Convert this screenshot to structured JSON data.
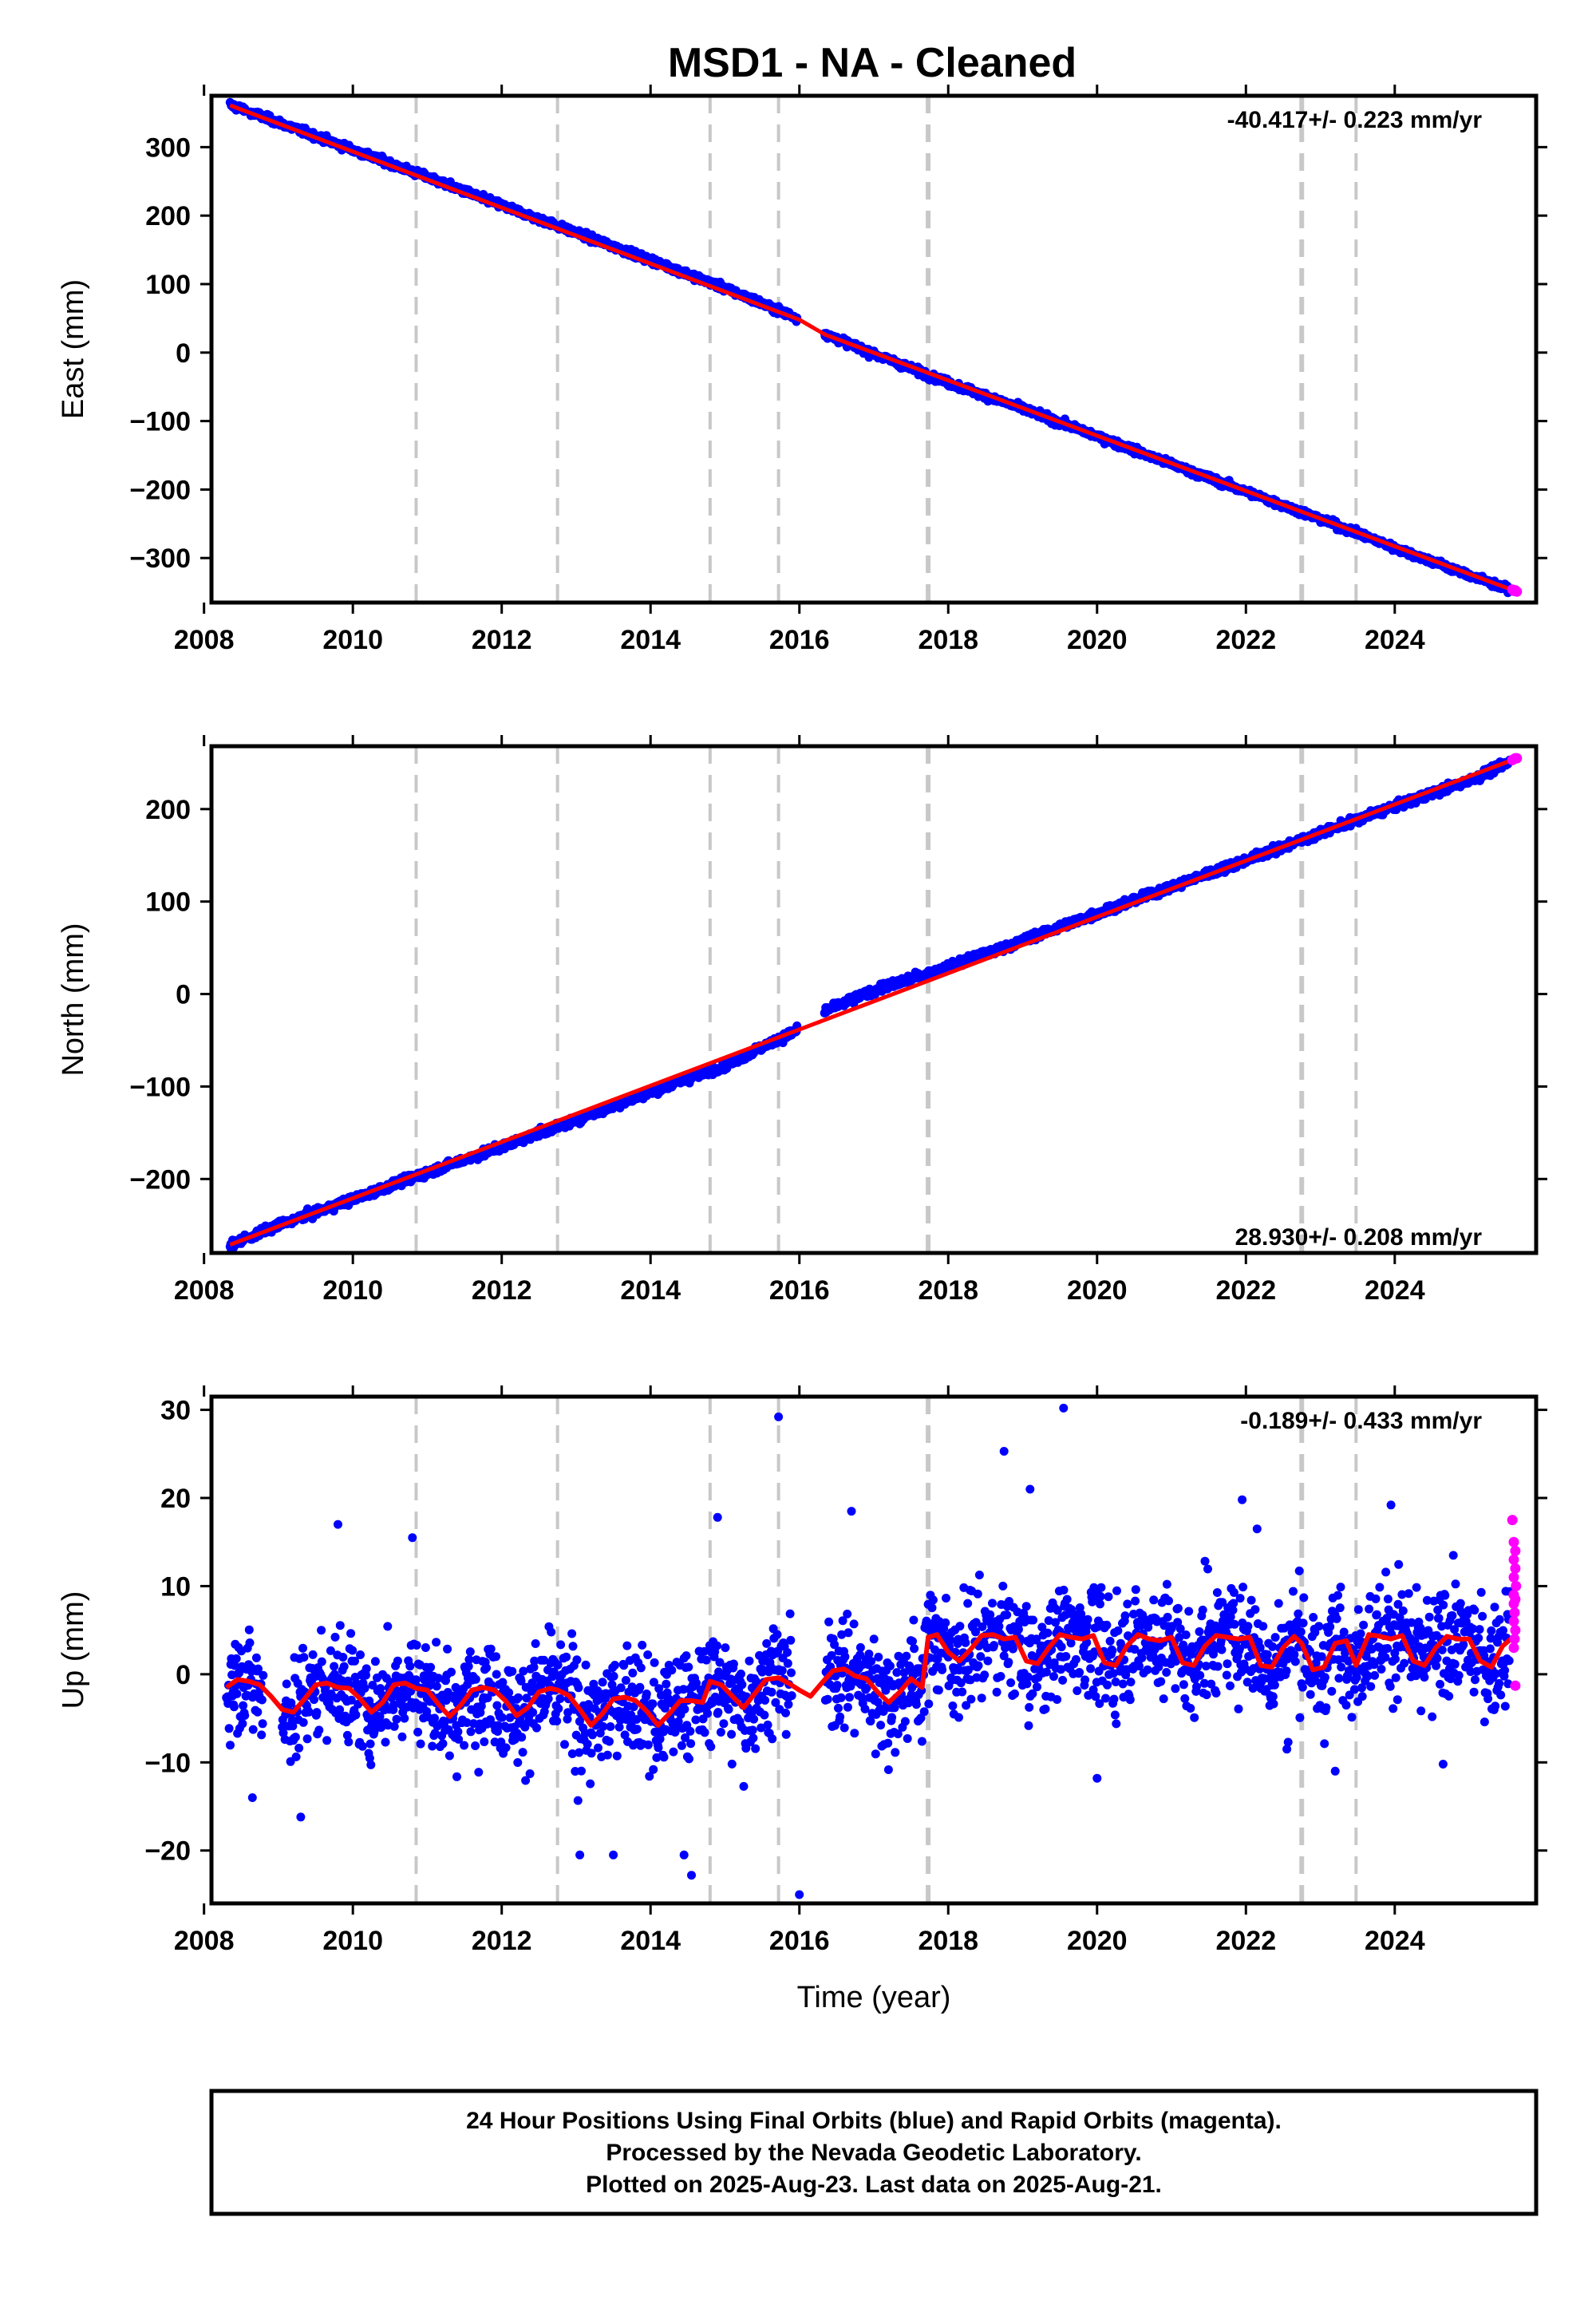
{
  "title": "MSD1  - NA - Cleaned",
  "colors": {
    "final_orbits": "#0000ff",
    "rapid_orbits": "#ff00ff",
    "model": "#ff0000",
    "equipment_lines": "#c8c8c8",
    "frame": "#000000"
  },
  "footer": {
    "line1": "24 Hour Positions Using Final Orbits (blue) and Rapid Orbits (magenta).",
    "line2": "Processed by the Nevada Geodetic Laboratory.",
    "line3": "Plotted on 2025-Aug-23. Last data on 2025-Aug-21."
  },
  "chart_data": [
    {
      "type": "scatter",
      "component": "east",
      "ylabel": "East (mm)",
      "xlabel": "",
      "xlim": [
        2008.1,
        2025.9
      ],
      "ylim": [
        -365,
        375
      ],
      "x_ticks": [
        2008,
        2010,
        2012,
        2014,
        2016,
        2018,
        2020,
        2022,
        2024
      ],
      "y_ticks": [
        300,
        200,
        100,
        0,
        -100,
        -200,
        -300
      ],
      "y_tick_labels": [
        "300",
        "200",
        "100",
        "0",
        "−100",
        "−200",
        "−300"
      ],
      "rate_label": "-40.417+/- 0.223 mm/yr",
      "rate_position": "top-right",
      "grid": false,
      "equipment_changes": [
        2010.85,
        2012.75,
        2014.8,
        2015.72,
        2017.73,
        2022.75,
        2023.48
      ],
      "series": [
        {
          "name": "Final Orbits (blue)",
          "x": [
            2008.35,
            2009.0,
            2010.0,
            2011.0,
            2012.0,
            2013.0,
            2014.0,
            2015.0,
            2016.0,
            2016.35,
            2017.0,
            2018.0,
            2019.0,
            2020.0,
            2021.0,
            2022.0,
            2023.0,
            2024.0,
            2025.0,
            2025.55
          ],
          "y": [
            362,
            336,
            296,
            256,
            215,
            175,
            135,
            94,
            49,
            27,
            -2,
            -44,
            -82,
            -122,
            -163,
            -203,
            -243,
            -285,
            -325,
            -347
          ],
          "noise": 3.5
        },
        {
          "name": "Rapid Orbits (magenta)",
          "x": [
            2025.58,
            2025.6,
            2025.62,
            2025.64
          ],
          "y": [
            -346,
            -348,
            -347,
            -349
          ]
        },
        {
          "name": "Model",
          "x": [
            2008.35,
            2016.0,
            2016.35,
            2025.64
          ],
          "y": [
            361,
            48,
            26,
            -349
          ]
        }
      ]
    },
    {
      "type": "scatter",
      "component": "north",
      "ylabel": "North (mm)",
      "xlabel": "",
      "xlim": [
        2008.1,
        2025.9
      ],
      "ylim": [
        -280,
        268
      ],
      "x_ticks": [
        2008,
        2010,
        2012,
        2014,
        2016,
        2018,
        2020,
        2022,
        2024
      ],
      "y_ticks": [
        200,
        100,
        0,
        -100,
        -200
      ],
      "y_tick_labels": [
        "200",
        "100",
        "0",
        "−100",
        "−200"
      ],
      "rate_label": "28.930+/- 0.208 mm/yr",
      "rate_position": "bottom-right",
      "grid": false,
      "equipment_changes": [
        2010.85,
        2012.75,
        2014.8,
        2015.72,
        2017.73,
        2022.75,
        2023.48
      ],
      "series": [
        {
          "name": "Final Orbits (blue)",
          "x": [
            2008.35,
            2009.0,
            2010.0,
            2011.0,
            2012.0,
            2013.0,
            2014.0,
            2015.0,
            2015.95,
            2016.35,
            2017.0,
            2018.0,
            2019.0,
            2020.0,
            2021.0,
            2022.0,
            2023.0,
            2024.0,
            2025.0,
            2025.55
          ],
          "y": [
            -272,
            -250,
            -222,
            -193,
            -165,
            -136,
            -106,
            -77,
            -40,
            -18,
            4,
            29,
            58,
            87,
            116,
            145,
            174,
            203,
            231,
            251
          ],
          "noise": 3
        },
        {
          "name": "Rapid Orbits (magenta)",
          "x": [
            2025.58,
            2025.6,
            2025.62,
            2025.64
          ],
          "y": [
            253,
            254,
            255,
            255
          ]
        },
        {
          "name": "Model",
          "x": [
            2008.35,
            2025.64
          ],
          "y": [
            -271,
            255
          ]
        }
      ]
    },
    {
      "type": "scatter",
      "component": "up",
      "ylabel": "Up (mm)",
      "xlabel": "Time (year)",
      "xlim": [
        2008.1,
        2025.9
      ],
      "ylim": [
        -26,
        31.5
      ],
      "x_ticks": [
        2008,
        2010,
        2012,
        2014,
        2016,
        2018,
        2020,
        2022,
        2024
      ],
      "y_ticks": [
        30,
        20,
        10,
        0,
        -10,
        -20
      ],
      "y_tick_labels": [
        "30",
        "20",
        "10",
        "0",
        "−10",
        "−20"
      ],
      "rate_label": "-0.189+/- 0.433 mm/yr",
      "rate_position": "top-right",
      "grid": false,
      "equipment_changes": [
        2010.85,
        2012.75,
        2014.8,
        2015.72,
        2017.73,
        2022.75,
        2023.48
      ],
      "series": [
        {
          "name": "Final Orbits (blue)",
          "segments": [
            [
              2008.3,
              2008.8
            ],
            [
              2009.05,
              2015.9
            ],
            [
              2016.35,
              2025.55
            ]
          ],
          "noise": 4.2,
          "outliers": [
            [
              2015.72,
              29.2
            ],
            [
              2019.55,
              30.2
            ],
            [
              2018.75,
              25.3
            ],
            [
              2016.0,
              -25.0
            ],
            [
              2014.55,
              -22.8
            ],
            [
              2014.45,
              -20.5
            ],
            [
              2013.5,
              -20.5
            ],
            [
              2013.05,
              -20.5
            ],
            [
              2009.3,
              -16.2
            ],
            [
              2008.65,
              -14.0
            ],
            [
              2014.9,
              17.8
            ],
            [
              2009.8,
              17.0
            ],
            [
              2010.8,
              15.5
            ],
            [
              2016.7,
              18.5
            ],
            [
              2021.95,
              19.8
            ],
            [
              2023.95,
              19.2
            ],
            [
              2019.1,
              21.0
            ],
            [
              2022.15,
              16.5
            ],
            [
              2020.0,
              -11.8
            ],
            [
              2022.55,
              -8.5
            ],
            [
              2023.2,
              -11.0
            ],
            [
              2024.65,
              -10.2
            ]
          ]
        },
        {
          "name": "Rapid Orbits (magenta)",
          "x": [
            2025.58,
            2025.6,
            2025.62,
            2025.6,
            2025.62,
            2025.6,
            2025.63,
            2025.6,
            2025.62,
            2025.6,
            2025.61,
            2025.6,
            2025.62,
            2025.61,
            2025.6,
            2025.62
          ],
          "y": [
            17.5,
            15.0,
            14.0,
            13.0,
            12.0,
            11.0,
            10.0,
            9.0,
            8.5,
            8.0,
            7.0,
            6.0,
            5.0,
            4.0,
            3.0,
            -1.3
          ]
        },
        {
          "name": "Model",
          "x": [
            2008.3,
            2008.45,
            2008.6,
            2008.75,
            2008.9,
            2009.05,
            2009.2,
            2009.35,
            2009.5,
            2009.65,
            2009.8,
            2009.95,
            2010.1,
            2010.25,
            2010.4,
            2010.55,
            2010.7,
            2010.85,
            2011.0,
            2011.15,
            2011.3,
            2011.45,
            2011.6,
            2011.75,
            2011.9,
            2012.05,
            2012.2,
            2012.35,
            2012.5,
            2012.65,
            2012.75,
            2012.9,
            2013.05,
            2013.2,
            2013.35,
            2013.5,
            2013.65,
            2013.8,
            2013.95,
            2014.1,
            2014.25,
            2014.4,
            2014.55,
            2014.7,
            2014.8,
            2014.95,
            2015.1,
            2015.25,
            2015.4,
            2015.55,
            2015.72,
            2015.85,
            2016.0,
            2016.15,
            2016.3,
            2016.45,
            2016.6,
            2016.75,
            2016.9,
            2017.05,
            2017.2,
            2017.35,
            2017.5,
            2017.65,
            2017.73,
            2017.85,
            2018.0,
            2018.15,
            2018.3,
            2018.45,
            2018.6,
            2018.75,
            2018.9,
            2019.05,
            2019.2,
            2019.35,
            2019.5,
            2019.65,
            2019.8,
            2019.95,
            2020.1,
            2020.25,
            2020.4,
            2020.55,
            2020.7,
            2020.85,
            2021.0,
            2021.15,
            2021.3,
            2021.45,
            2021.6,
            2021.75,
            2021.9,
            2022.05,
            2022.2,
            2022.35,
            2022.5,
            2022.65,
            2022.75,
            2022.9,
            2023.05,
            2023.2,
            2023.35,
            2023.48,
            2023.65,
            2023.8,
            2023.95,
            2024.1,
            2024.25,
            2024.4,
            2024.55,
            2024.7,
            2024.85,
            2025.0,
            2025.15,
            2025.3,
            2025.45,
            2025.6
          ],
          "y": [
            -1.5,
            -0.6,
            -0.8,
            -1.2,
            -2.5,
            -4.0,
            -4.3,
            -2.8,
            -1.2,
            -1.0,
            -1.5,
            -1.6,
            -2.8,
            -4.3,
            -3.2,
            -1.2,
            -1.0,
            -1.6,
            -1.8,
            -3.4,
            -4.8,
            -3.5,
            -1.8,
            -1.5,
            -1.8,
            -3.0,
            -4.7,
            -3.8,
            -2.0,
            -1.6,
            -1.8,
            -2.4,
            -4.0,
            -5.8,
            -4.5,
            -2.8,
            -2.6,
            -3.0,
            -4.2,
            -5.8,
            -4.5,
            -3.0,
            -3.0,
            -3.2,
            -0.8,
            -1.2,
            -2.5,
            -3.8,
            -2.2,
            -0.6,
            -0.4,
            -1.0,
            -1.8,
            -2.5,
            -1.0,
            0.4,
            0.6,
            -0.2,
            -0.5,
            -2.0,
            -3.2,
            -2.0,
            -0.5,
            -1.5,
            4.2,
            4.5,
            2.5,
            1.5,
            2.8,
            4.4,
            4.5,
            4.0,
            4.2,
            1.5,
            1.2,
            3.0,
            4.5,
            4.2,
            4.0,
            4.4,
            1.3,
            1.0,
            3.2,
            4.5,
            4.0,
            3.8,
            4.2,
            1.3,
            1.0,
            3.2,
            4.4,
            4.2,
            4.0,
            4.2,
            1.0,
            0.8,
            3.0,
            4.3,
            3.5,
            0.5,
            0.8,
            3.5,
            3.8,
            1.0,
            4.5,
            4.3,
            4.0,
            4.4,
            1.5,
            1.0,
            3.0,
            4.3,
            4.0,
            4.0,
            1.5,
            0.8,
            3.2,
            4.3
          ]
        }
      ]
    }
  ]
}
